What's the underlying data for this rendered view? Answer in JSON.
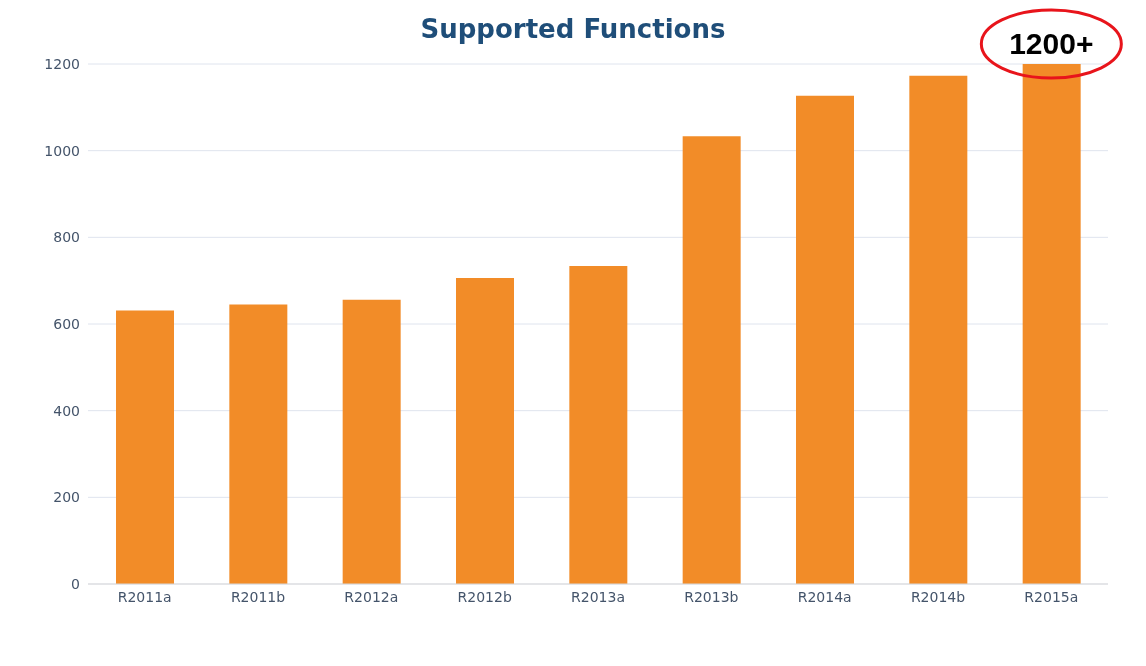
{
  "chart_data": {
    "type": "bar",
    "title": "Supported Functions",
    "categories": [
      "R2011a",
      "R2011b",
      "R2012a",
      "R2012b",
      "R2013a",
      "R2013b",
      "R2014a",
      "R2014b",
      "R2015a"
    ],
    "values": [
      631,
      645,
      656,
      706,
      734,
      1033,
      1127,
      1173,
      1200
    ],
    "color": "#f28c28",
    "ylim": [
      0,
      1200
    ],
    "yticks": [
      0,
      200,
      400,
      600,
      800,
      1000,
      1200
    ],
    "grid": "y",
    "annotations": [
      {
        "text": "1200+",
        "x": "R2015a",
        "y": 1200
      }
    ]
  }
}
